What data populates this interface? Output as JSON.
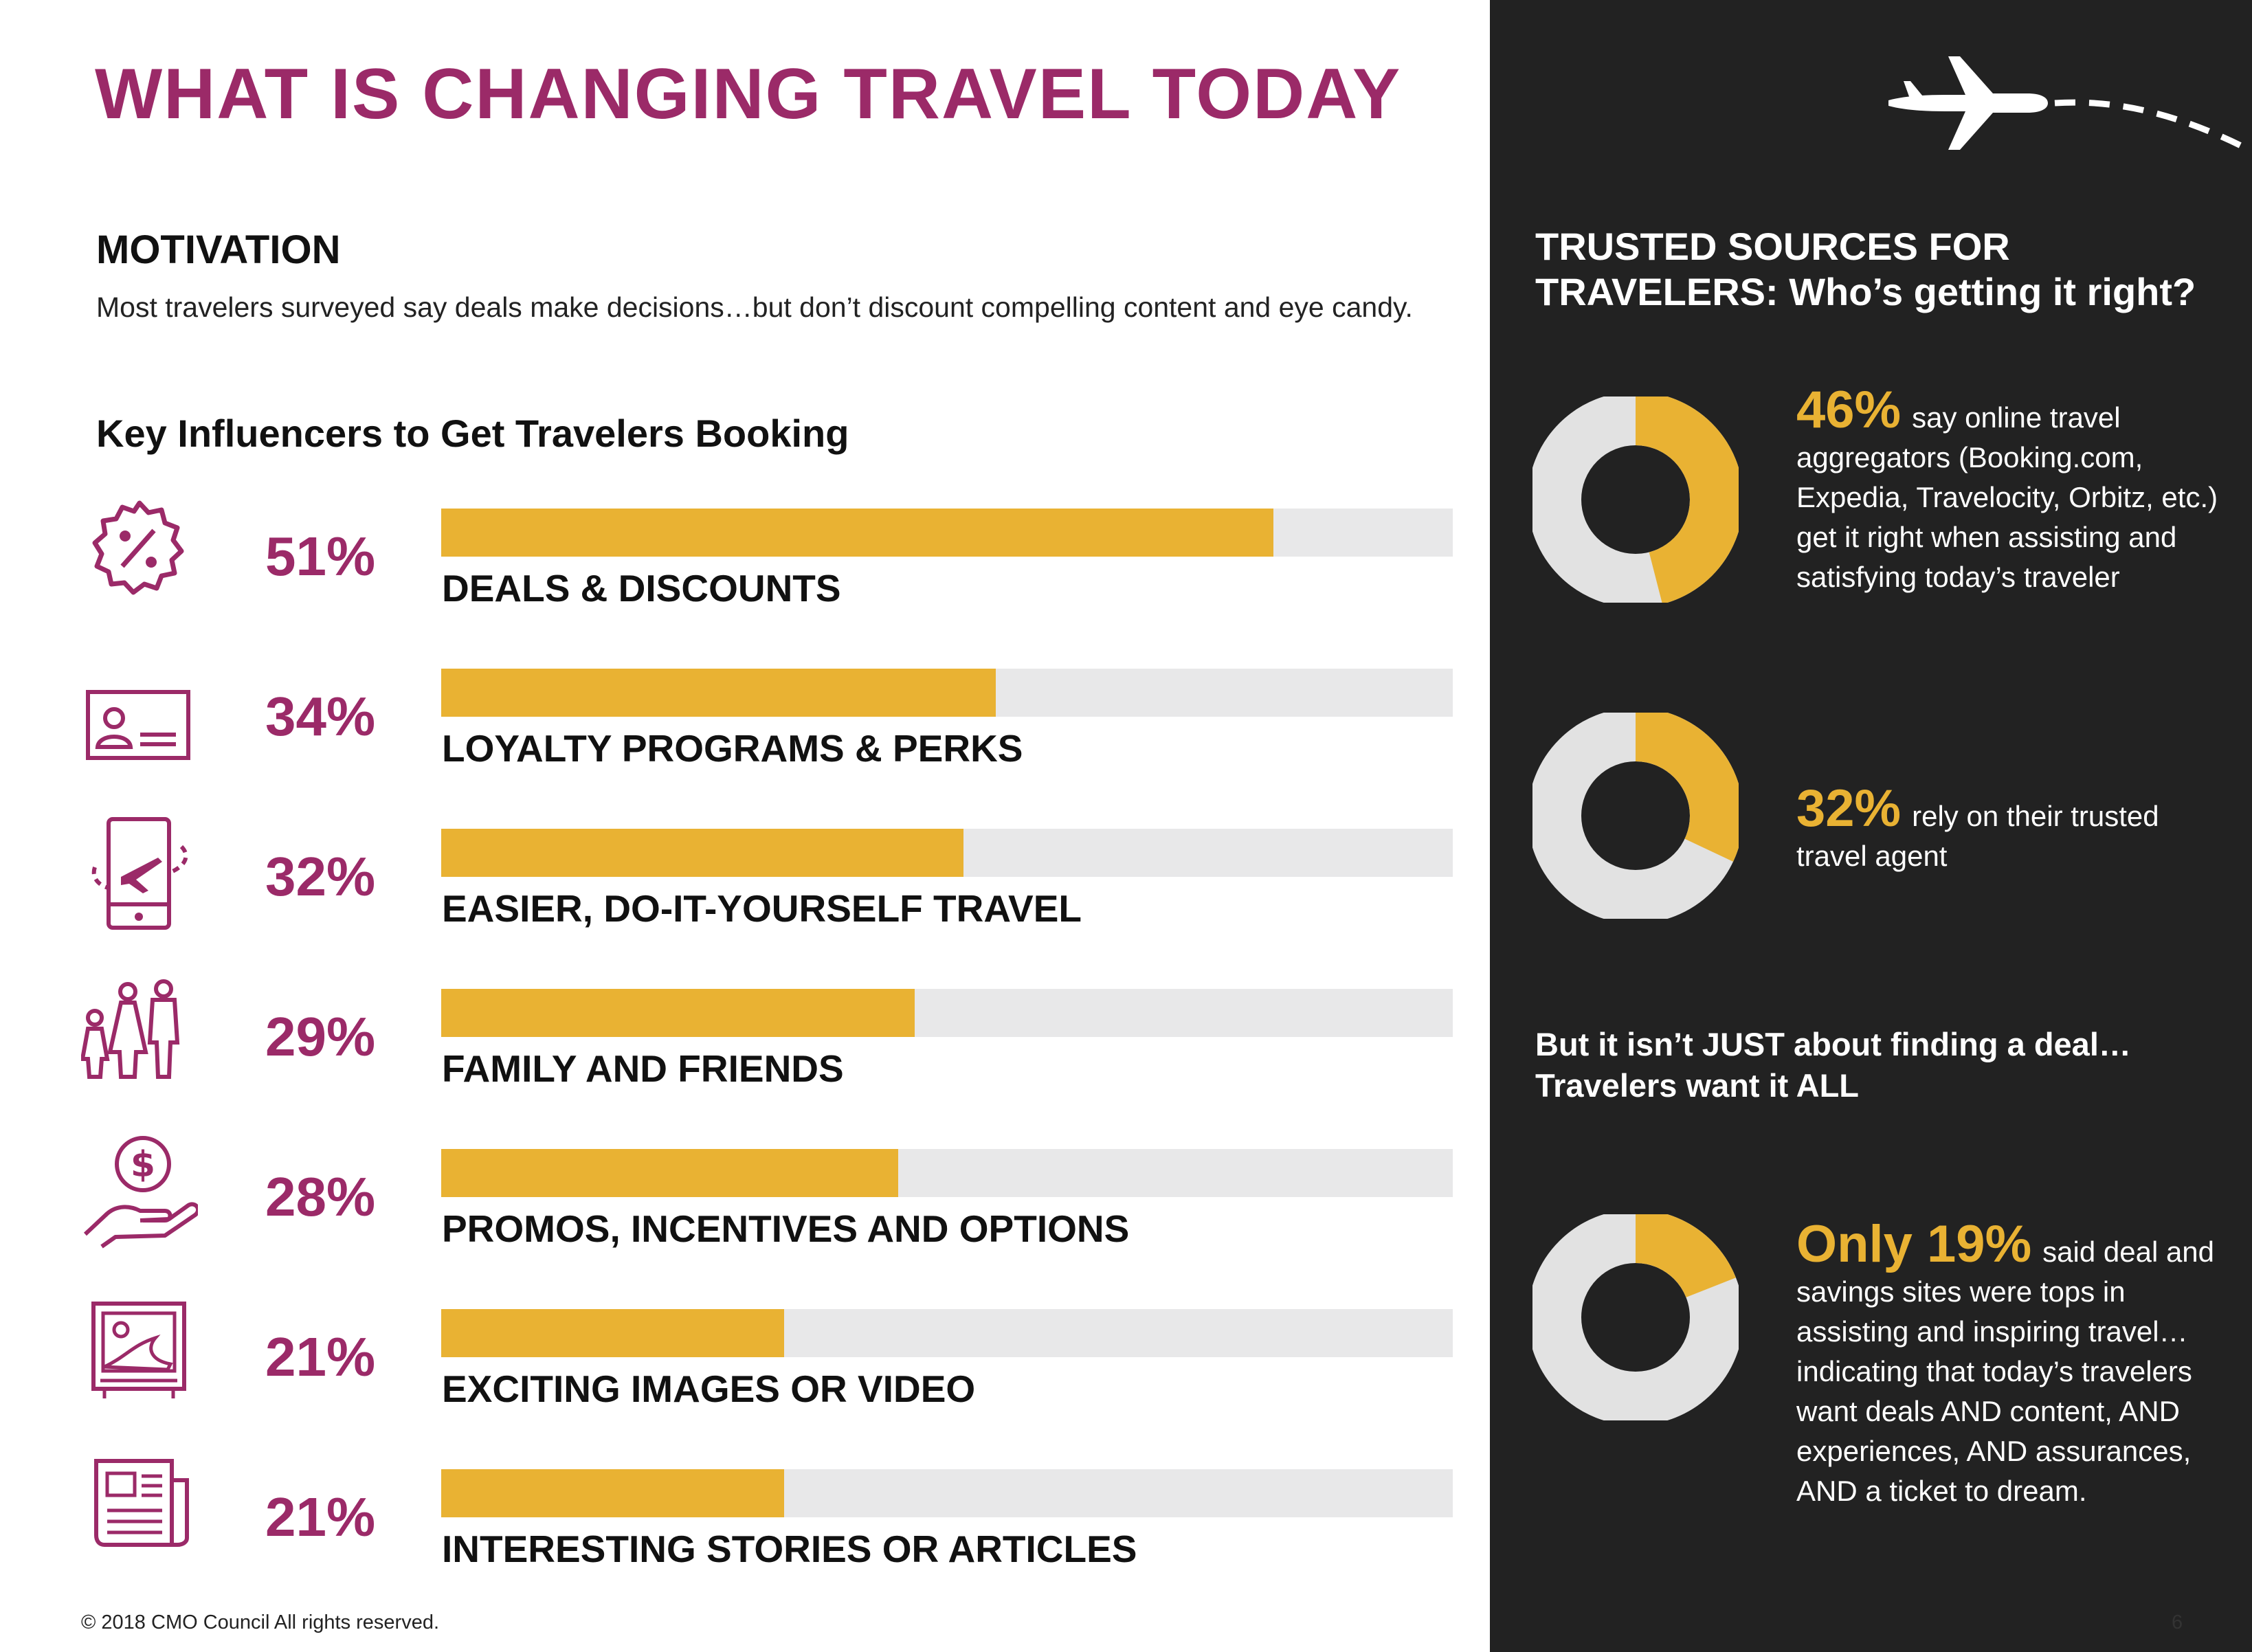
{
  "header": {
    "title": "WHAT IS CHANGING TRAVEL TODAY"
  },
  "motivation": {
    "heading": "MOTIVATION",
    "text": "Most travelers surveyed say deals make decisions…but don’t discount compelling content and eye candy."
  },
  "chart_data": {
    "type": "bar",
    "title": "Key Influencers to Get Travelers Booking",
    "categories": [
      "DEALS & DISCOUNTS",
      "LOYALTY PROGRAMS & PERKS",
      "EASIER, DO-IT-YOURSELF TRAVEL",
      "FAMILY AND FRIENDS",
      "PROMOS, INCENTIVES AND OPTIONS",
      "EXCITING IMAGES OR VIDEO",
      "INTERESTING STORIES OR ARTICLES"
    ],
    "values": [
      51,
      34,
      32,
      29,
      28,
      21,
      21
    ],
    "labels": [
      "51%",
      "34%",
      "32%",
      "29%",
      "28%",
      "21%",
      "21%"
    ],
    "icons": [
      "discount-badge-icon",
      "id-card-icon",
      "tablet-plane-icon",
      "family-icon",
      "money-hand-icon",
      "image-frame-icon",
      "newspaper-icon"
    ],
    "ylim": [
      0,
      62
    ],
    "colors": {
      "bar": "#e9b233",
      "track": "#e8e8e9",
      "percent": "#9b2a68"
    }
  },
  "sidebar": {
    "title_line1": "TRUSTED SOURCES FOR",
    "title_line2": "TRAVELERS: Who’s getting it right?",
    "stats": [
      {
        "value": 46,
        "big": "46%",
        "text": "say online travel aggregators (Booking.com, Expedia, Travelocity, Orbitz, etc.) get it right when assisting and satisfying today’s traveler"
      },
      {
        "value": 32,
        "big": "32%",
        "text": "rely on their trusted travel agent"
      },
      {
        "value": 19,
        "big": "Only 19%",
        "text": "said deal and savings sites were tops in assisting and inspiring travel…indicating that today’s travelers want deals AND content, AND experiences, AND assurances, AND a ticket to dream."
      }
    ],
    "deal_line1": "But it isn’t JUST about finding a deal…",
    "deal_line2": "Travelers want it ALL",
    "colors": {
      "accent": "#e9b233",
      "ring": "#e2e2e2",
      "hole": "#222222"
    }
  },
  "footer": {
    "copyright": "© 2018 CMO Council  All rights reserved.",
    "page": "6"
  }
}
